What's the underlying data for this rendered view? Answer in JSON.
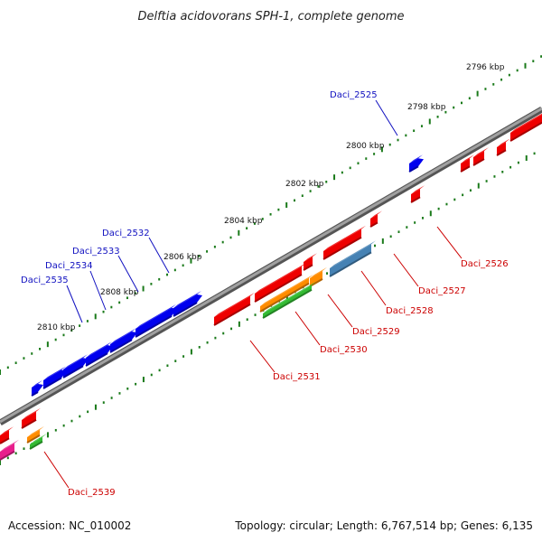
{
  "title": "Delftia acidovorans SPH-1, complete genome",
  "footer": {
    "accession": "Accession: NC_010002",
    "summary": "Topology: circular; Length: 6,767,514 bp; Genes: 6,135"
  },
  "ruler_labels": [
    "2796 kbp",
    "2798 kbp",
    "2800 kbp",
    "2802 kbp",
    "2804 kbp",
    "2806 kbp",
    "2808 kbp",
    "2810 kbp"
  ],
  "genes_forward": [
    "Daci_2525",
    "Daci_2532",
    "Daci_2533",
    "Daci_2534",
    "Daci_2535"
  ],
  "genes_reverse": [
    "Daci_2526",
    "Daci_2527",
    "Daci_2528",
    "Daci_2529",
    "Daci_2530",
    "Daci_2531",
    "Daci_2539"
  ],
  "colors": {
    "forward_label": "#1010c0",
    "reverse_label": "#cc0000",
    "backbone": "#808080",
    "tick": "#1a7a1a",
    "blue_gene": "#0000ee",
    "red_gene": "#ee0000",
    "orange_gene": "#ff8c00",
    "green_gene": "#33bb33",
    "steel_gene": "#4682b4",
    "magenta_gene": "#e81e8c"
  }
}
